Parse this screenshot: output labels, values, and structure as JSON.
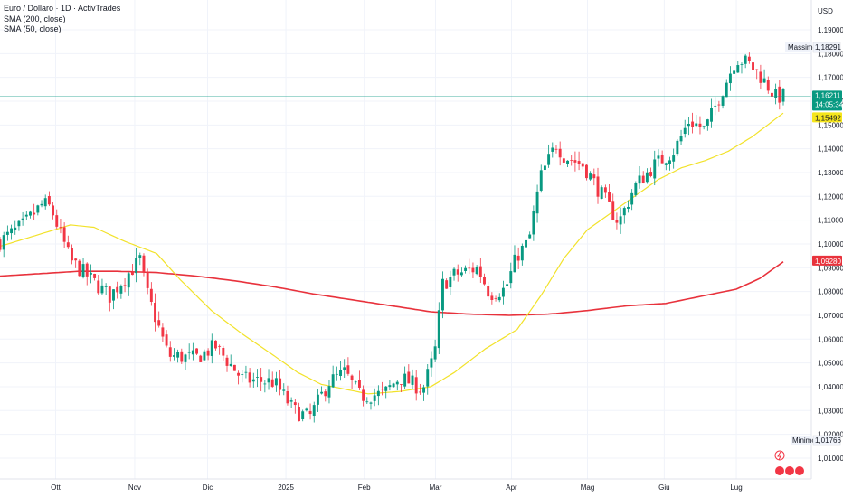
{
  "header": {
    "title": "Euro / Dollaro · 1D · ActivTrades",
    "sma200_label": "SMA (200, close)",
    "sma50_label": "SMA (50, close)"
  },
  "price_axis": {
    "currency": "USD",
    "max_label": "Massimo",
    "max_value": "1,18291",
    "min_label": "Minimo",
    "min_value": "1,01766",
    "last_price": "1,16211",
    "countdown": "14:05:34",
    "sma50_value": "1,15492",
    "sma200_value": "1,09280"
  },
  "colors": {
    "up": "#089981",
    "down": "#f23645",
    "sma50": "#f2e22a",
    "sma200": "#e8323c",
    "last_price_tag": "#089981",
    "sma50_tag": "#f5e51b",
    "sma200_tag": "#e8323c",
    "grid": "#f0f3fa"
  },
  "chart_data": {
    "type": "candlestick",
    "title": "Euro / Dollaro · 1D · ActivTrades",
    "ylabel": "USD",
    "ylim": [
      1.0,
      1.195
    ],
    "y_ticks": [
      "1,19000",
      "1,18000",
      "1,17000",
      "1,16000",
      "1,15000",
      "1,14000",
      "1,13000",
      "1,12000",
      "1,11000",
      "1,10000",
      "1,09000",
      "1,08000",
      "1,07000",
      "1,06000",
      "1,05000",
      "1,04000",
      "1,03000",
      "1,02000",
      "1,01000"
    ],
    "x_ticks": [
      "Ott",
      "Nov",
      "Dic",
      "2025",
      "Feb",
      "Mar",
      "Apr",
      "Mag",
      "Giu",
      "Lug"
    ],
    "grid": true,
    "close_anchors": [
      {
        "x": 0,
        "v": 1.101
      },
      {
        "x": 0.03,
        "v": 1.108
      },
      {
        "x": 0.055,
        "v": 1.117
      },
      {
        "x": 0.065,
        "v": 1.115
      },
      {
        "x": 0.09,
        "v": 1.093
      },
      {
        "x": 0.14,
        "v": 1.078
      },
      {
        "x": 0.18,
        "v": 1.094
      },
      {
        "x": 0.185,
        "v": 1.082
      },
      {
        "x": 0.215,
        "v": 1.053
      },
      {
        "x": 0.25,
        "v": 1.052
      },
      {
        "x": 0.275,
        "v": 1.057
      },
      {
        "x": 0.31,
        "v": 1.043
      },
      {
        "x": 0.35,
        "v": 1.042
      },
      {
        "x": 0.375,
        "v": 1.03
      },
      {
        "x": 0.395,
        "v": 1.027
      },
      {
        "x": 0.42,
        "v": 1.042
      },
      {
        "x": 0.44,
        "v": 1.046
      },
      {
        "x": 0.46,
        "v": 1.036
      },
      {
        "x": 0.49,
        "v": 1.037
      },
      {
        "x": 0.51,
        "v": 1.044
      },
      {
        "x": 0.54,
        "v": 1.039
      },
      {
        "x": 0.555,
        "v": 1.054
      },
      {
        "x": 0.565,
        "v": 1.083
      },
      {
        "x": 0.58,
        "v": 1.087
      },
      {
        "x": 0.61,
        "v": 1.09
      },
      {
        "x": 0.625,
        "v": 1.079
      },
      {
        "x": 0.645,
        "v": 1.081
      },
      {
        "x": 0.66,
        "v": 1.095
      },
      {
        "x": 0.675,
        "v": 1.101
      },
      {
        "x": 0.69,
        "v": 1.128
      },
      {
        "x": 0.71,
        "v": 1.142
      },
      {
        "x": 0.72,
        "v": 1.137
      },
      {
        "x": 0.745,
        "v": 1.133
      },
      {
        "x": 0.775,
        "v": 1.117
      },
      {
        "x": 0.79,
        "v": 1.109
      },
      {
        "x": 0.81,
        "v": 1.124
      },
      {
        "x": 0.835,
        "v": 1.133
      },
      {
        "x": 0.86,
        "v": 1.139
      },
      {
        "x": 0.88,
        "v": 1.152
      },
      {
        "x": 0.9,
        "v": 1.148
      },
      {
        "x": 0.92,
        "v": 1.163
      },
      {
        "x": 0.94,
        "v": 1.178
      },
      {
        "x": 0.955,
        "v": 1.176
      },
      {
        "x": 0.97,
        "v": 1.171
      },
      {
        "x": 0.99,
        "v": 1.162
      },
      {
        "x": 1.0,
        "v": 1.162
      }
    ],
    "series": [
      {
        "name": "SMA (50, close)",
        "values": [
          {
            "x": 0,
            "v": 1.099
          },
          {
            "x": 0.05,
            "v": 1.104
          },
          {
            "x": 0.09,
            "v": 1.108
          },
          {
            "x": 0.12,
            "v": 1.107
          },
          {
            "x": 0.16,
            "v": 1.101
          },
          {
            "x": 0.2,
            "v": 1.096
          },
          {
            "x": 0.23,
            "v": 1.085
          },
          {
            "x": 0.27,
            "v": 1.072
          },
          {
            "x": 0.31,
            "v": 1.062
          },
          {
            "x": 0.35,
            "v": 1.053
          },
          {
            "x": 0.38,
            "v": 1.046
          },
          {
            "x": 0.41,
            "v": 1.041
          },
          {
            "x": 0.44,
            "v": 1.039
          },
          {
            "x": 0.47,
            "v": 1.037
          },
          {
            "x": 0.51,
            "v": 1.038
          },
          {
            "x": 0.55,
            "v": 1.04
          },
          {
            "x": 0.58,
            "v": 1.046
          },
          {
            "x": 0.62,
            "v": 1.056
          },
          {
            "x": 0.66,
            "v": 1.064
          },
          {
            "x": 0.69,
            "v": 1.078
          },
          {
            "x": 0.72,
            "v": 1.094
          },
          {
            "x": 0.75,
            "v": 1.106
          },
          {
            "x": 0.78,
            "v": 1.113
          },
          {
            "x": 0.81,
            "v": 1.12
          },
          {
            "x": 0.84,
            "v": 1.127
          },
          {
            "x": 0.87,
            "v": 1.132
          },
          {
            "x": 0.9,
            "v": 1.135
          },
          {
            "x": 0.93,
            "v": 1.139
          },
          {
            "x": 0.96,
            "v": 1.145
          },
          {
            "x": 1.0,
            "v": 1.155
          }
        ]
      },
      {
        "name": "SMA (200, close)",
        "values": [
          {
            "x": 0,
            "v": 1.0865
          },
          {
            "x": 0.05,
            "v": 1.0875
          },
          {
            "x": 0.1,
            "v": 1.0885
          },
          {
            "x": 0.15,
            "v": 1.0885
          },
          {
            "x": 0.2,
            "v": 1.088
          },
          {
            "x": 0.25,
            "v": 1.0865
          },
          {
            "x": 0.3,
            "v": 1.0845
          },
          {
            "x": 0.35,
            "v": 1.082
          },
          {
            "x": 0.4,
            "v": 1.079
          },
          {
            "x": 0.45,
            "v": 1.0765
          },
          {
            "x": 0.5,
            "v": 1.074
          },
          {
            "x": 0.55,
            "v": 1.0715
          },
          {
            "x": 0.6,
            "v": 1.0705
          },
          {
            "x": 0.65,
            "v": 1.07
          },
          {
            "x": 0.7,
            "v": 1.0705
          },
          {
            "x": 0.75,
            "v": 1.072
          },
          {
            "x": 0.8,
            "v": 1.074
          },
          {
            "x": 0.85,
            "v": 1.075
          },
          {
            "x": 0.88,
            "v": 1.077
          },
          {
            "x": 0.91,
            "v": 1.079
          },
          {
            "x": 0.94,
            "v": 1.081
          },
          {
            "x": 0.97,
            "v": 1.0855
          },
          {
            "x": 1.0,
            "v": 1.0925
          }
        ]
      }
    ]
  }
}
